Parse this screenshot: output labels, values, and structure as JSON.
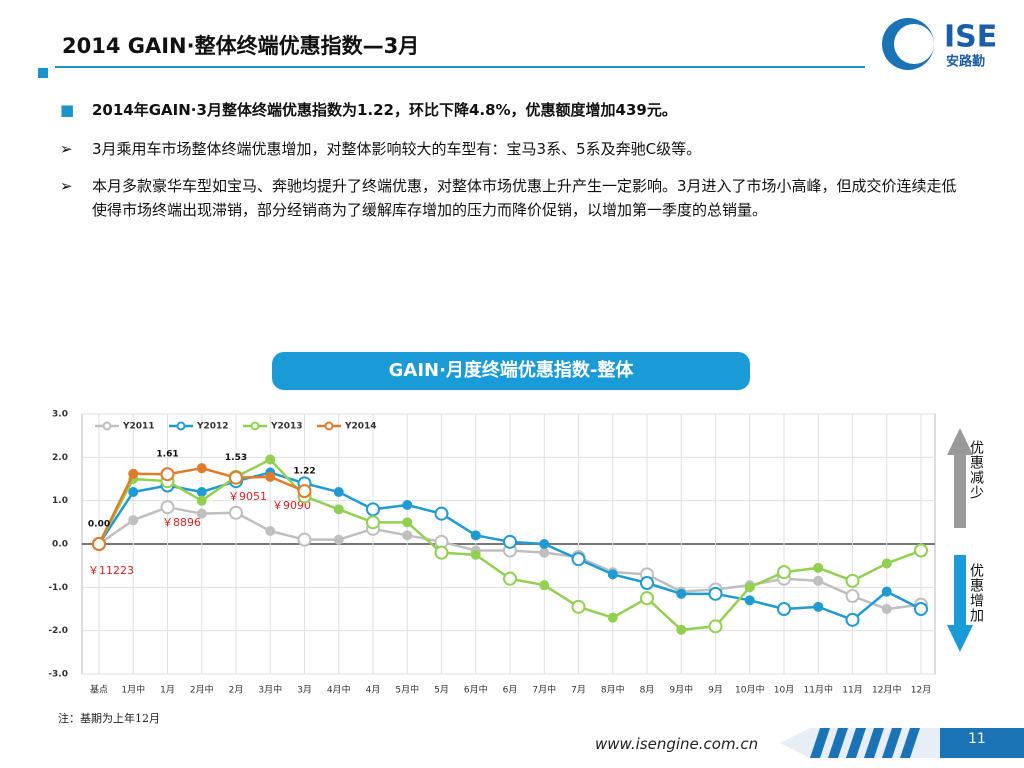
{
  "header": {
    "title": "2014 GAIN·整体终端优惠指数—3月",
    "logo": "ISE",
    "logo_sub": "安路勤"
  },
  "bullets": [
    "2014年GAIN·3月整体终端优惠指数为1.22，环比下降4.8%，优惠额度增加439元。",
    "3月乘用车市场整体终端优惠增加，对整体影响较大的车型有：宝马3系、5系及奔驰C级等。",
    "本月多款豪华车型如宝马、奔驰均提升了终端优惠，对整体市场优惠上升产生一定影响。3月进入了市场小高峰，但成交价连续走低使得市场终端出现滞销，部分经销商为了缓解库存增加的压力而降价促销，以增加第一季度的总销量。"
  ],
  "chart_data": {
    "type": "line",
    "title": "GAIN·月度终端优惠指数-整体",
    "categories": [
      "基点",
      "1月中",
      "1月",
      "2月中",
      "2月",
      "3月中",
      "3月",
      "4月中",
      "4月",
      "5月中",
      "5月",
      "6月中",
      "6月",
      "7月中",
      "7月",
      "8月中",
      "8月",
      "9月中",
      "9月",
      "10月中",
      "10月",
      "11月中",
      "11月",
      "12月中",
      "12月"
    ],
    "series": [
      {
        "name": "Y2011",
        "color": "#bfbfbf",
        "values": [
          0,
          0.55,
          0.85,
          0.7,
          0.72,
          0.3,
          0.1,
          0.1,
          0.35,
          0.2,
          0.05,
          -0.15,
          -0.15,
          -0.2,
          -0.3,
          -0.65,
          -0.7,
          -1.1,
          -1.05,
          -0.95,
          -0.8,
          -0.85,
          -1.2,
          -1.5,
          -1.4
        ]
      },
      {
        "name": "Y2012",
        "color": "#1f9bd1",
        "values": [
          0,
          1.2,
          1.35,
          1.2,
          1.45,
          1.65,
          1.4,
          1.2,
          0.8,
          0.9,
          0.7,
          0.2,
          0.05,
          0,
          -0.35,
          -0.7,
          -0.9,
          -1.15,
          -1.15,
          -1.3,
          -1.5,
          -1.45,
          -1.75,
          -1.1,
          -1.5
        ]
      },
      {
        "name": "Y2013",
        "color": "#92d050",
        "values": [
          0,
          1.5,
          1.45,
          1.0,
          1.55,
          1.95,
          1.1,
          0.8,
          0.5,
          0.5,
          -0.2,
          -0.25,
          -0.8,
          -0.95,
          -1.45,
          -1.7,
          -1.25,
          -1.98,
          -1.9,
          -1.0,
          -0.65,
          -0.55,
          -0.85,
          -0.45,
          -0.15
        ]
      },
      {
        "name": "Y2014",
        "color": "#e07b2a",
        "values": [
          0,
          1.62,
          1.61,
          1.75,
          1.53,
          1.55,
          1.22,
          null,
          null,
          null,
          null,
          null,
          null,
          null,
          null,
          null,
          null,
          null,
          null,
          null,
          null,
          null,
          null,
          null,
          null
        ],
        "value_labels": [
          "0.00",
          null,
          "1.61",
          null,
          "1.53",
          null,
          "1.22",
          null,
          null,
          null,
          null,
          null,
          null,
          null,
          null,
          null,
          null,
          null,
          null,
          null,
          null,
          null,
          null,
          null,
          null
        ]
      }
    ],
    "ylim": [
      -3,
      3
    ],
    "yticks": [
      {
        "value": -3,
        "label": "-3.0"
      },
      {
        "value": -2,
        "label": "-2.0"
      },
      {
        "value": -1,
        "label": "-1.0"
      },
      {
        "value": 0,
        "label": "0.0"
      },
      {
        "value": 1,
        "label": "1.0"
      },
      {
        "value": 2,
        "label": "2.0"
      },
      {
        "value": 3,
        "label": "3.0"
      }
    ],
    "grid": true,
    "legend": "top-left",
    "annotations": [
      "￥11223",
      "￥8896",
      "￥9051",
      "￥9090"
    ],
    "arrow_labels": [
      "优惠减少",
      "优惠增加"
    ]
  },
  "footnote": "注：基期为上年12月",
  "url": "www.isengine.com.cn",
  "page": "11"
}
